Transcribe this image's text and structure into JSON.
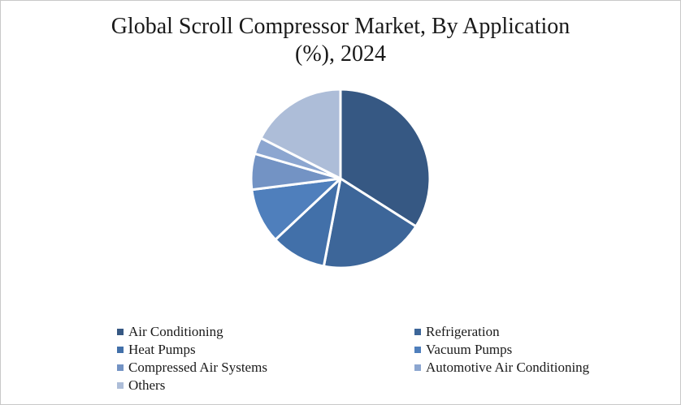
{
  "chart_data": {
    "type": "pie",
    "title_lines": [
      "Global Scroll Compressor Market, By Application",
      "(%), 2024"
    ],
    "start_angle_deg": 0,
    "direction": "clockwise",
    "legend_placement": "bottom",
    "slices": [
      {
        "label": "Air Conditioning",
        "value": 34,
        "color": "#365883"
      },
      {
        "label": "Refrigeration",
        "value": 19,
        "color": "#3d6699"
      },
      {
        "label": "Heat Pumps",
        "value": 10,
        "color": "#4270a9"
      },
      {
        "label": "Vacuum Pumps",
        "value": 10,
        "color": "#4f7fbc"
      },
      {
        "label": "Compressed Air Systems",
        "value": 6.5,
        "color": "#7393c4"
      },
      {
        "label": "Automotive Air Conditioning",
        "value": 3,
        "color": "#8ca6d0"
      },
      {
        "label": "Others",
        "value": 17.5,
        "color": "#adbdd8"
      }
    ]
  }
}
